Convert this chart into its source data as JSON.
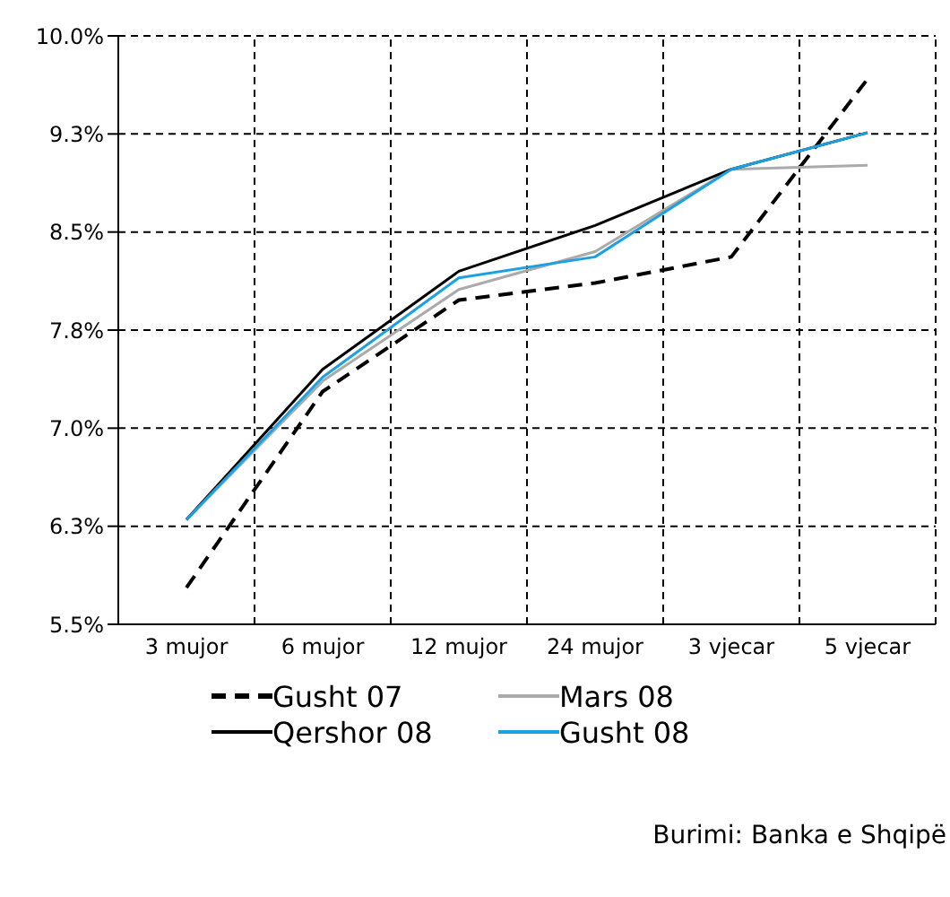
{
  "chart_data": {
    "type": "line",
    "categories": [
      "3 mujor",
      "6 mujor",
      "12 mujor",
      "24 mujor",
      "3 vjecar",
      "5 vjecar"
    ],
    "series": [
      {
        "name": "Gusht 07",
        "color": "#000000",
        "line_style": "dashed",
        "values": [
          5.78,
          7.28,
          7.98,
          8.11,
          8.31,
          9.67
        ]
      },
      {
        "name": "Mars 08",
        "color": "#aaaaaa",
        "values": [
          6.3,
          7.36,
          8.06,
          8.35,
          8.98,
          9.01
        ]
      },
      {
        "name": "Qershor 08",
        "color": "#000000",
        "values": [
          6.3,
          7.45,
          8.2,
          8.55,
          8.98,
          9.26
        ]
      },
      {
        "name": "Gusht 08",
        "color": "#1ba1e2",
        "values": [
          6.3,
          7.39,
          8.15,
          8.31,
          8.98,
          9.26
        ]
      }
    ],
    "ylim": [
      5.5,
      10
    ],
    "yticks": [
      {
        "value": 5.5,
        "label": "5.5%"
      },
      {
        "value": 6.25,
        "label": "6.3%"
      },
      {
        "value": 7,
        "label": "7.0%"
      },
      {
        "value": 7.75,
        "label": "7.8%"
      },
      {
        "value": 8.5,
        "label": "8.5%"
      },
      {
        "value": 9.25,
        "label": "9.3%"
      },
      {
        "value": 10,
        "label": "10.0%"
      }
    ],
    "grid": true,
    "legend": "bottom",
    "line_style": "solid",
    "marker": "none",
    "annotations": [
      "Burimi: Banka e Shqipë"
    ]
  }
}
